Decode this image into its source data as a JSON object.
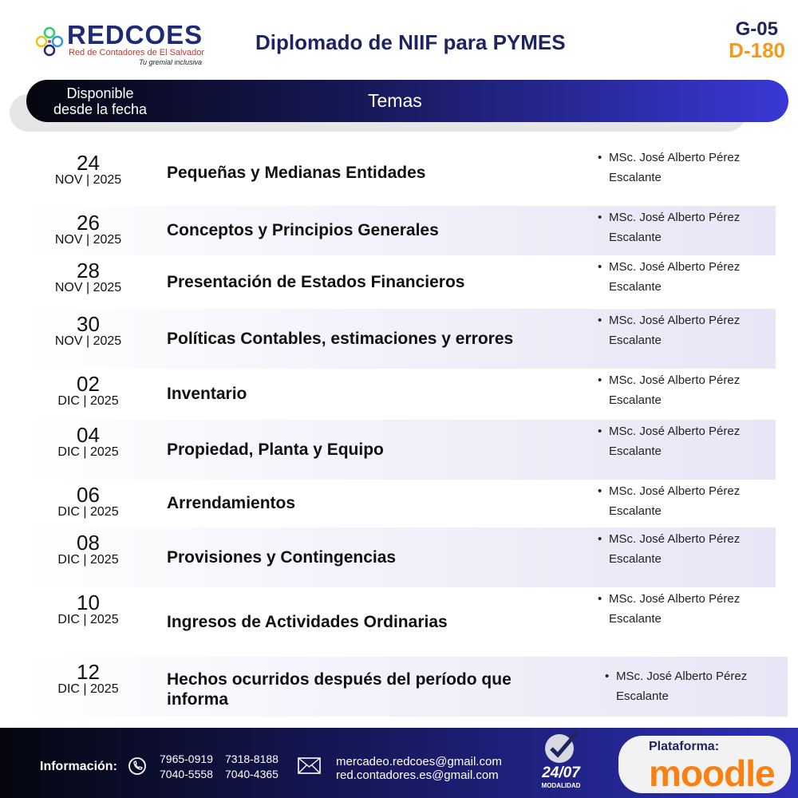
{
  "header": {
    "logo_brand": "REDCOES",
    "logo_subtitle": "Red de Contadores de El Salvador",
    "logo_tagline": "Tu gremial inclusiva",
    "title": "Diplomado de NIIF para PYMES",
    "code_group": "G-05",
    "code_diploma": "D-180"
  },
  "table": {
    "col_date": "Disponible desde la fecha",
    "col_topics": "Temas",
    "rows": [
      {
        "day": "24",
        "month": "NOV  | 2025",
        "topic": "Pequeñas y Medianas Entidades",
        "instructor": "MSc. José Alberto Pérez Escalante"
      },
      {
        "day": "26",
        "month": "NOV | 2025",
        "topic": "Conceptos y Principios Generales",
        "instructor": "MSc. José Alberto Pérez Escalante"
      },
      {
        "day": "28",
        "month": "NOV | 2025",
        "topic": "Presentación de Estados Financieros",
        "instructor": "MSc. José Alberto Pérez Escalante"
      },
      {
        "day": "30",
        "month": "NOV | 2025",
        "topic": "Políticas Contables, estimaciones y errores",
        "instructor": "MSc. José Alberto Pérez Escalante"
      },
      {
        "day": "02",
        "month": "DIC | 2025",
        "topic": "Inventario",
        "instructor": "MSc. José Alberto Pérez Escalante"
      },
      {
        "day": "04",
        "month": "DIC | 2025",
        "topic": "Propiedad, Planta y Equipo",
        "instructor": "MSc. José Alberto Pérez Escalante"
      },
      {
        "day": "06",
        "month": "DIC | 2025",
        "topic": "Arrendamientos",
        "instructor": "MSc. José Alberto Pérez Escalante"
      },
      {
        "day": "08",
        "month": "DIC | 2025",
        "topic": "Provisiones y Contingencias",
        "instructor": "MSc. José Alberto Pérez Escalante"
      },
      {
        "day": "10",
        "month": "DIC | 2025",
        "topic": "Ingresos de Actividades Ordinarias",
        "instructor": "MSc. José Alberto Pérez Escalante"
      },
      {
        "day": "12",
        "month": "DIC | 2025",
        "topic": "Hechos ocurridos después del período que informa",
        "instructor": "MSc. José Alberto Pérez Escalante"
      }
    ]
  },
  "footer": {
    "info_label": "Información:",
    "phones": [
      "7965-0919",
      "7318-8188",
      "7040-5558",
      "7040-4365"
    ],
    "emails": [
      "mercadeo.redcoes@gmail.com",
      "red.contadores.es@gmail.com"
    ],
    "modality_value": "24/07",
    "modality_label": "MODALIDAD",
    "platform_label": "Plataforma:",
    "platform_name": "moodle"
  },
  "icons": {
    "phone": "whatsapp-icon",
    "email": "envelope-icon",
    "modality": "speedometer-check-icon"
  }
}
